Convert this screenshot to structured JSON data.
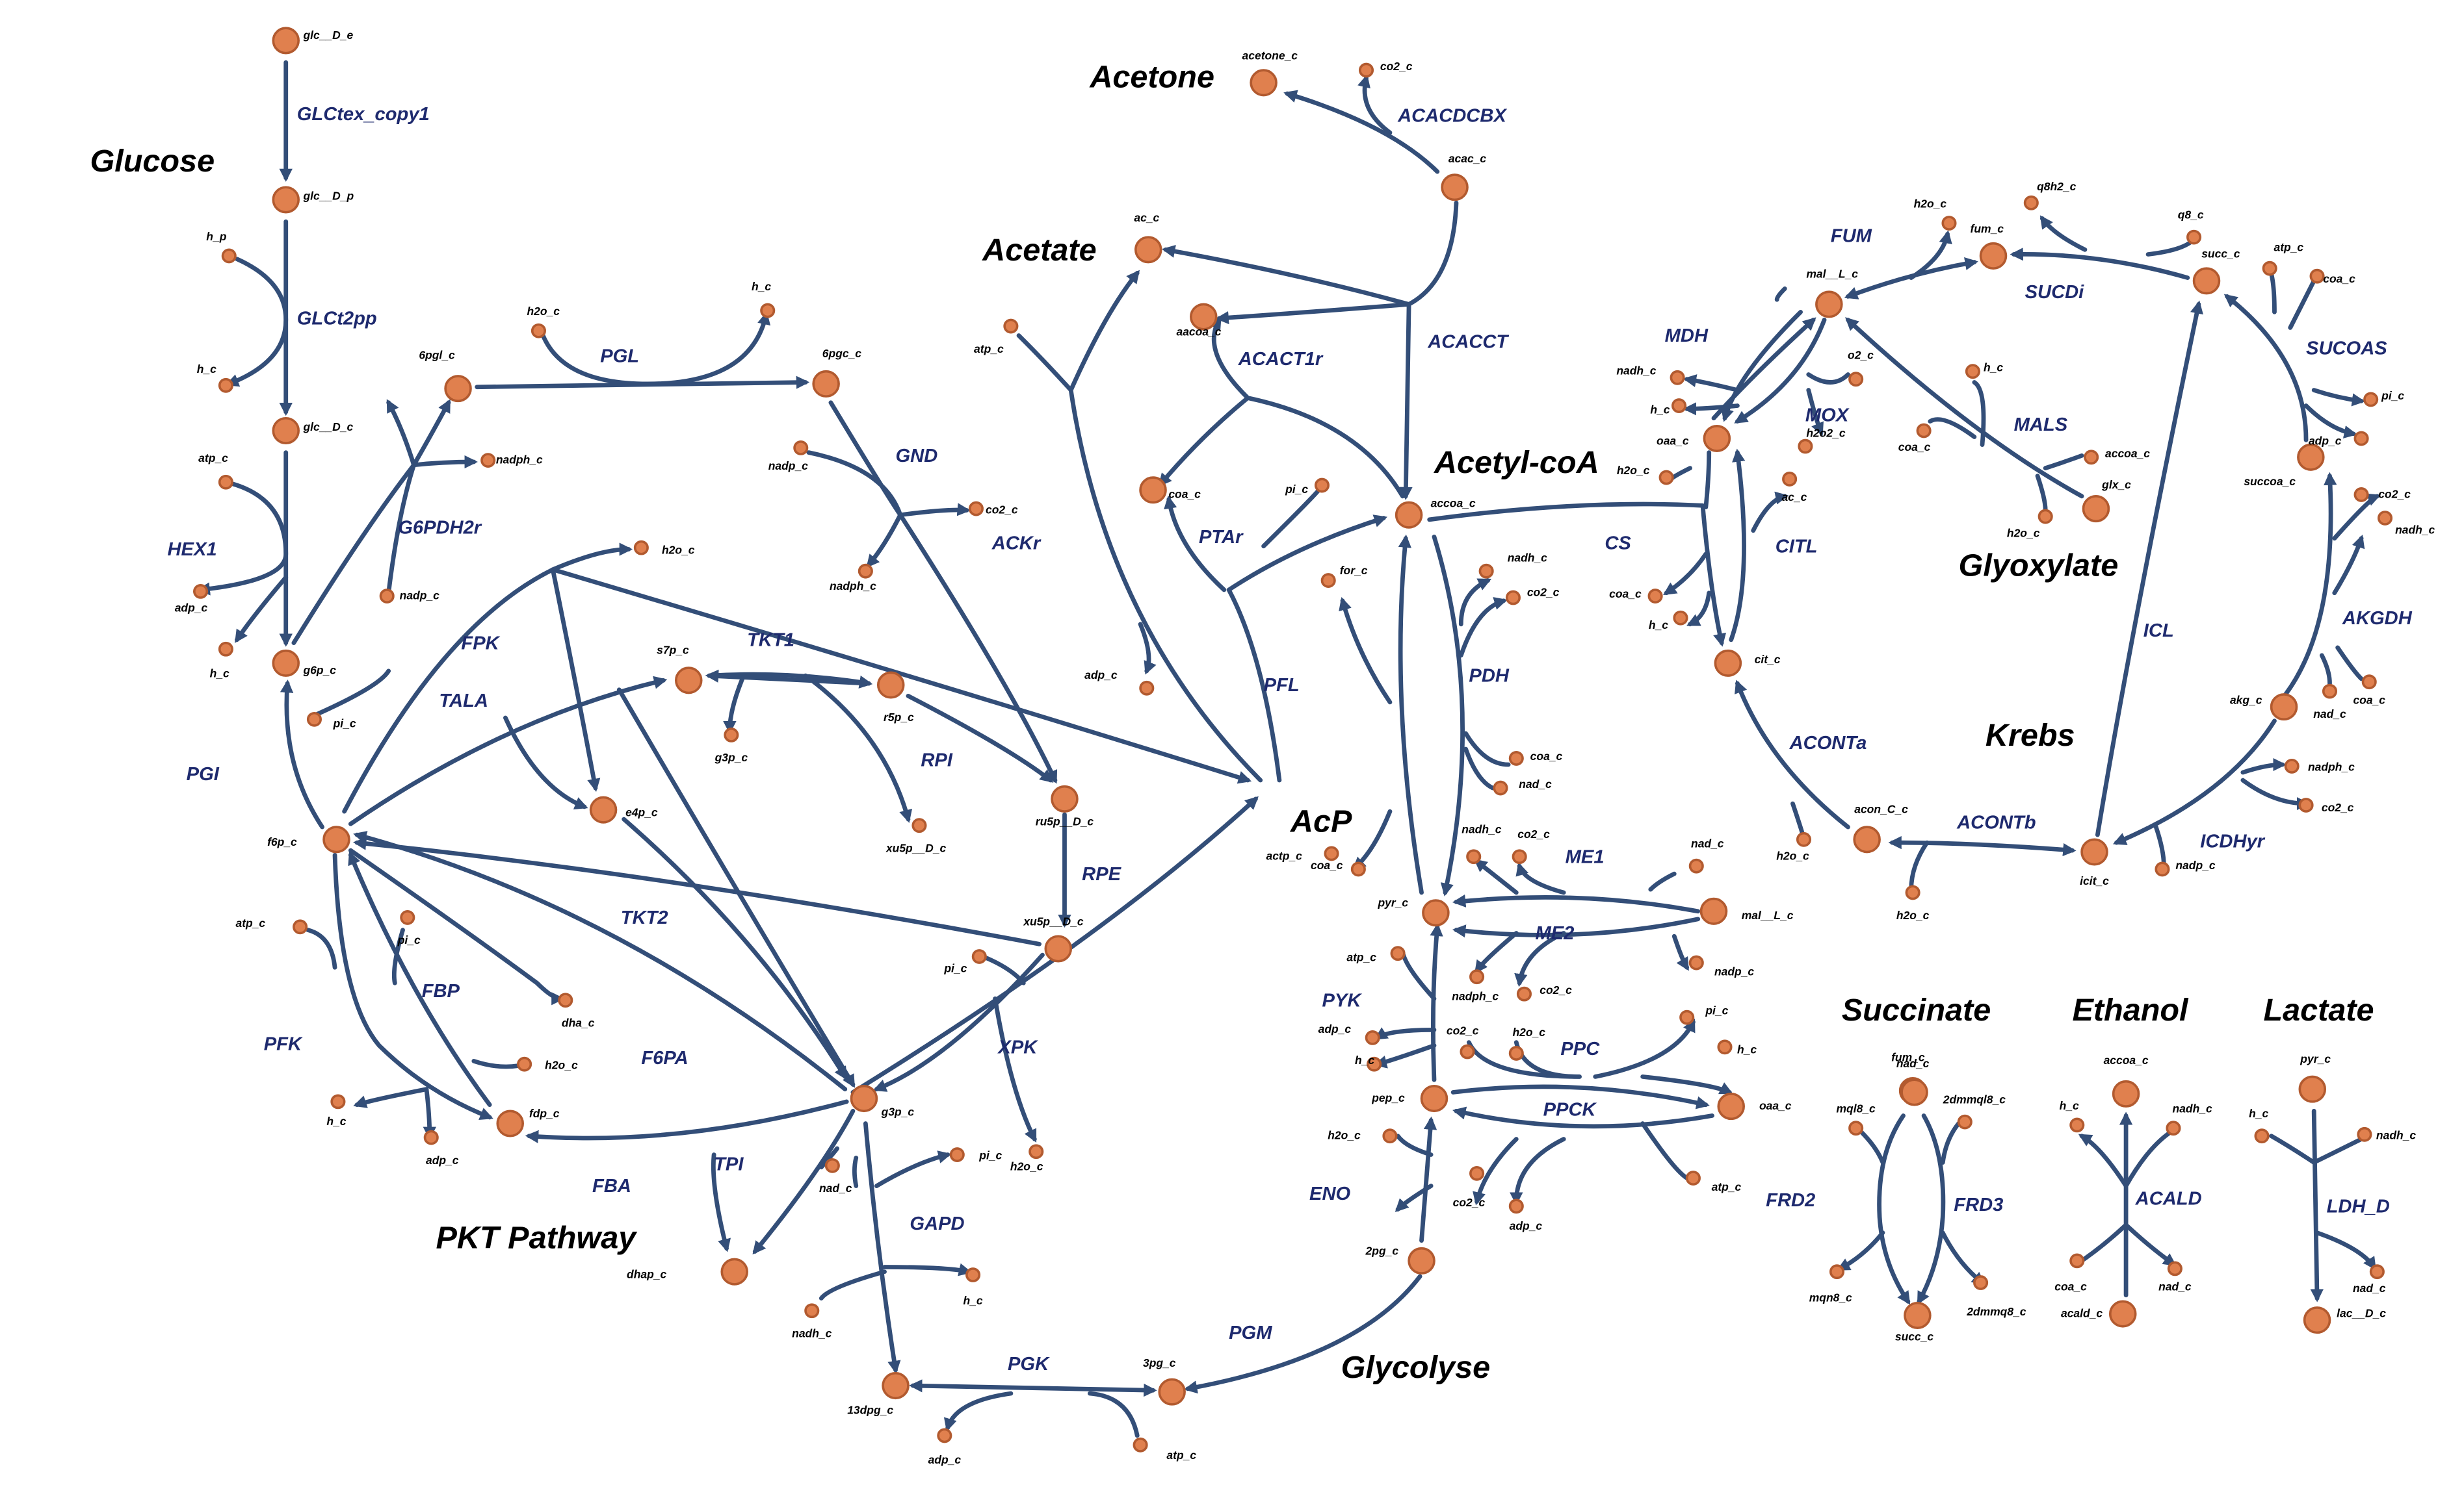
{
  "colors": {
    "edge": "#334e78",
    "node": "#e0804e",
    "reaction_label": "#1e2a6e",
    "group_label": "#000000"
  },
  "groups": [
    "Glucose",
    "Acetone",
    "Acetate",
    "Acetyl-coA",
    "AcP",
    "Glyoxylate",
    "Krebs",
    "Succinate",
    "Ethanol",
    "Lactate",
    "PKT Pathway",
    "Glycolyse"
  ],
  "reactions": [
    "GLCtex_copy1",
    "GLCt2pp",
    "HEX1",
    "G6PDH2r",
    "PGL",
    "GND",
    "ACKr",
    "FPK",
    "TKT1",
    "TALA",
    "RPI",
    "PGI",
    "RPE",
    "TKT2",
    "FBP",
    "PFK",
    "F6PA",
    "XPK",
    "FBA",
    "TPI",
    "GAPD",
    "PGK",
    "PGM",
    "ENO",
    "PYK",
    "ACACDCBX",
    "ACACCT",
    "ACACT1r",
    "PTAr",
    "PFL",
    "PDH",
    "CS",
    "ME1",
    "ME2",
    "PPC",
    "PPCK",
    "FRD2",
    "MDH",
    "FUM",
    "MOX",
    "SUCDi",
    "MALS",
    "CITL",
    "SUCOAS",
    "ICL",
    "AKGDH",
    "ACONTa",
    "ACONTb",
    "ICDHyr",
    "FRD3",
    "ACALD",
    "LDH_D"
  ],
  "metabolites": [
    "glc__D_e",
    "glc__D_p",
    "h_p",
    "h_c",
    "glc__D_c",
    "atp_c",
    "adp_c",
    "h_c",
    "g6p_c",
    "6pgl_c",
    "h2o_c",
    "h_c",
    "nadph_c",
    "nadp_c",
    "6pgc_c",
    "nadp_c",
    "co2_c",
    "nadph_c",
    "h2o_c",
    "s7p_c",
    "r5p_c",
    "g3p_c",
    "xu5p__D_c",
    "ru5p__D_c",
    "e4p_c",
    "pi_c",
    "f6p_c",
    "atp_c",
    "pi_c",
    "dha_c",
    "h2o_c",
    "h_c",
    "adp_c",
    "fdp_c",
    "xu5p__D_c",
    "pi_c",
    "g3p_c",
    "pi_c",
    "h2o_c",
    "nad_c",
    "nadh_c",
    "h_c",
    "dhap_c",
    "13dpg_c",
    "adp_c",
    "3pg_c",
    "atp_c",
    "acetone_c",
    "co2_c",
    "acac_c",
    "ac_c",
    "atp_c",
    "aacoa_c",
    "coa_c",
    "pi_c",
    "adp_c",
    "accoa_c",
    "for_c",
    "coa_c",
    "actp_c",
    "nadh_c",
    "co2_c",
    "coa_c",
    "nad_c",
    "pyr_c",
    "nadh_c",
    "co2_c",
    "nad_c",
    "mal__L_c",
    "nadp_c",
    "nadph_c",
    "co2_c",
    "atp_c",
    "adp_c",
    "h_c",
    "pep_c",
    "co2_c",
    "h2o_c",
    "pi_c",
    "h_c",
    "oaa_c",
    "co2_c",
    "adp_c",
    "atp_c",
    "h2o_c",
    "2pg_c",
    "nad_c",
    "mal__L_c",
    "h2o_c",
    "fum_c",
    "q8h2_c",
    "succ_c",
    "q8_c",
    "o2_c",
    "nadh_c",
    "h_c",
    "oaa_c",
    "h2o2_c",
    "h_c",
    "coa_c",
    "accoa_c",
    "glx_c",
    "h2o_c",
    "h2o_c",
    "ac_c",
    "coa_c",
    "h_c",
    "cit_c",
    "atp_c",
    "coa_c",
    "pi_c",
    "adp_c",
    "succoa_c",
    "co2_c",
    "nadh_c",
    "akg_c",
    "nad_c",
    "coa_c",
    "nadph_c",
    "co2_c",
    "acon_C_c",
    "icit_c",
    "nadp_c",
    "h2o_c",
    "h2o_c",
    "fum_c",
    "mql8_c",
    "2dmmql8_c",
    "mqn8_c",
    "succ_c",
    "2dmmq8_c",
    "accoa_c",
    "h_c",
    "nadh_c",
    "coa_c",
    "nad_c",
    "acald_c",
    "pyr_c",
    "h_c",
    "nadh_c",
    "nad_c",
    "lac__D_c"
  ]
}
